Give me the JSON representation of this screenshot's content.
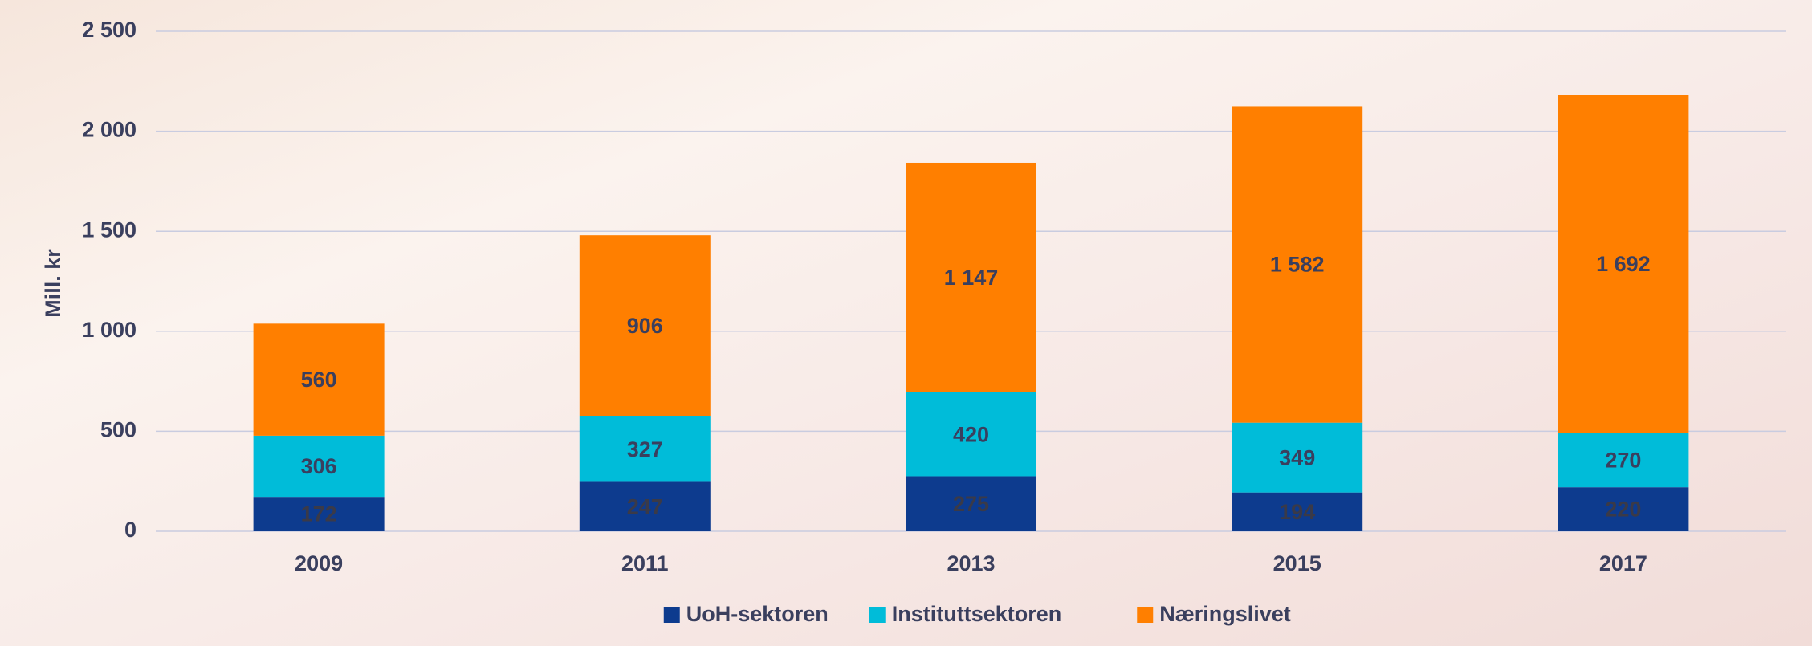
{
  "chart_data": {
    "type": "stacked_bar",
    "y_label": "Mill. kr",
    "categories": [
      "2009",
      "2011",
      "2013",
      "2015",
      "2017"
    ],
    "series": [
      {
        "name": "UoH-sektoren",
        "color": "#0d3b8e",
        "values": [
          172,
          247,
          275,
          194,
          220
        ],
        "value_labels": [
          "172",
          "247",
          "275",
          "194",
          "220"
        ]
      },
      {
        "name": "Instituttsektoren",
        "color": "#00bcd9",
        "values": [
          306,
          327,
          420,
          349,
          270
        ],
        "value_labels": [
          "306",
          "327",
          "420",
          "349",
          "270"
        ]
      },
      {
        "name": "Næringslivet",
        "color": "#ff7f00",
        "values": [
          560,
          906,
          1147,
          1582,
          1692
        ],
        "value_labels": [
          "560",
          "906",
          "1 147",
          "1 582",
          "1 692"
        ]
      }
    ],
    "ylim": [
      0,
      2500
    ],
    "yticks": [
      0,
      500,
      {
        "value": 1000,
        "label": "1 000"
      },
      {
        "value": 1500,
        "label": "1 500"
      },
      {
        "value": 2000,
        "label": "2 000"
      },
      {
        "value": 2500,
        "label": "2 500"
      }
    ],
    "grid": true,
    "legend": "bottom"
  }
}
